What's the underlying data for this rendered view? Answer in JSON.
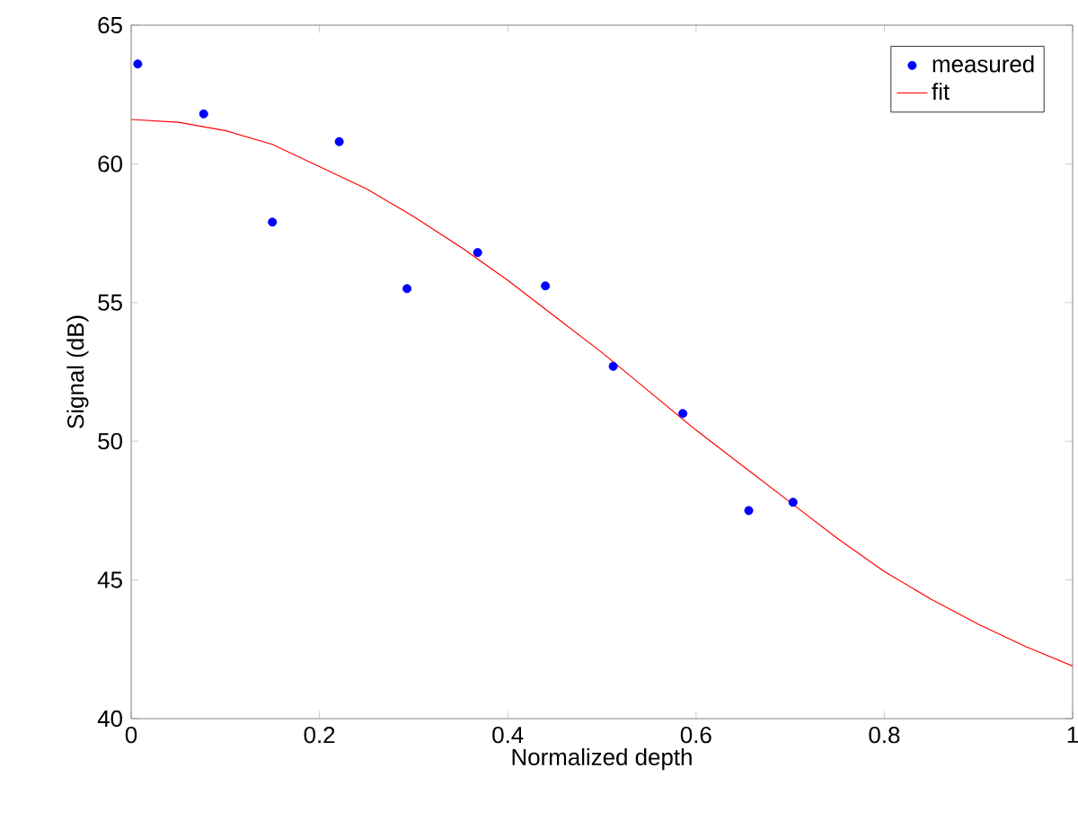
{
  "chart_data": {
    "type": "scatter",
    "xlabel": "Normalized depth",
    "ylabel": "Signal (dB)",
    "xlim": [
      0,
      1
    ],
    "ylim": [
      40,
      65
    ],
    "xticks": [
      0,
      0.2,
      0.4,
      0.6,
      0.8,
      1
    ],
    "yticks": [
      40,
      45,
      50,
      55,
      60,
      65
    ],
    "grid": false,
    "legend": "top right",
    "series": [
      {
        "name": "measured",
        "color": "#0000ff",
        "x": [
          0.007,
          0.077,
          0.15,
          0.221,
          0.293,
          0.368,
          0.44,
          0.512,
          0.586,
          0.656,
          0.703
        ],
        "values": [
          63.6,
          61.8,
          57.9,
          60.8,
          55.5,
          56.8,
          55.6,
          52.7,
          51.0,
          47.5,
          47.8
        ]
      },
      {
        "name": "fit",
        "type": "line",
        "color": "#ff0000",
        "x": [
          0,
          0.05,
          0.1,
          0.15,
          0.2,
          0.25,
          0.3,
          0.35,
          0.4,
          0.45,
          0.5,
          0.55,
          0.6,
          0.65,
          0.7,
          0.75,
          0.8,
          0.85,
          0.9,
          0.95,
          1.0
        ],
        "values": [
          61.6,
          61.5,
          61.2,
          60.7,
          59.9,
          59.1,
          58.1,
          57.0,
          55.8,
          54.5,
          53.2,
          51.8,
          50.4,
          49.1,
          47.8,
          46.5,
          45.3,
          44.3,
          43.4,
          42.6,
          41.9
        ]
      }
    ]
  }
}
